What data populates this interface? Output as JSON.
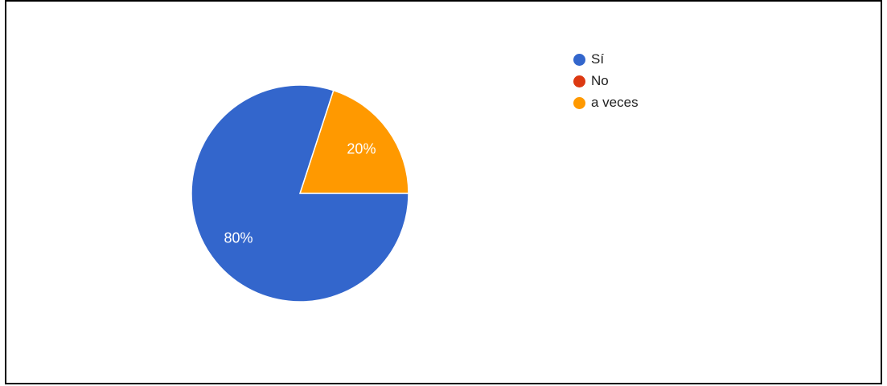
{
  "chart_data": {
    "type": "pie",
    "categories": [
      "Sí",
      "No",
      "a veces"
    ],
    "values": [
      80,
      0,
      20
    ],
    "colors": [
      "#3366cc",
      "#dc3912",
      "#ff9900"
    ],
    "labels": [
      "80%",
      "",
      "20%"
    ],
    "legend_position": "right"
  }
}
